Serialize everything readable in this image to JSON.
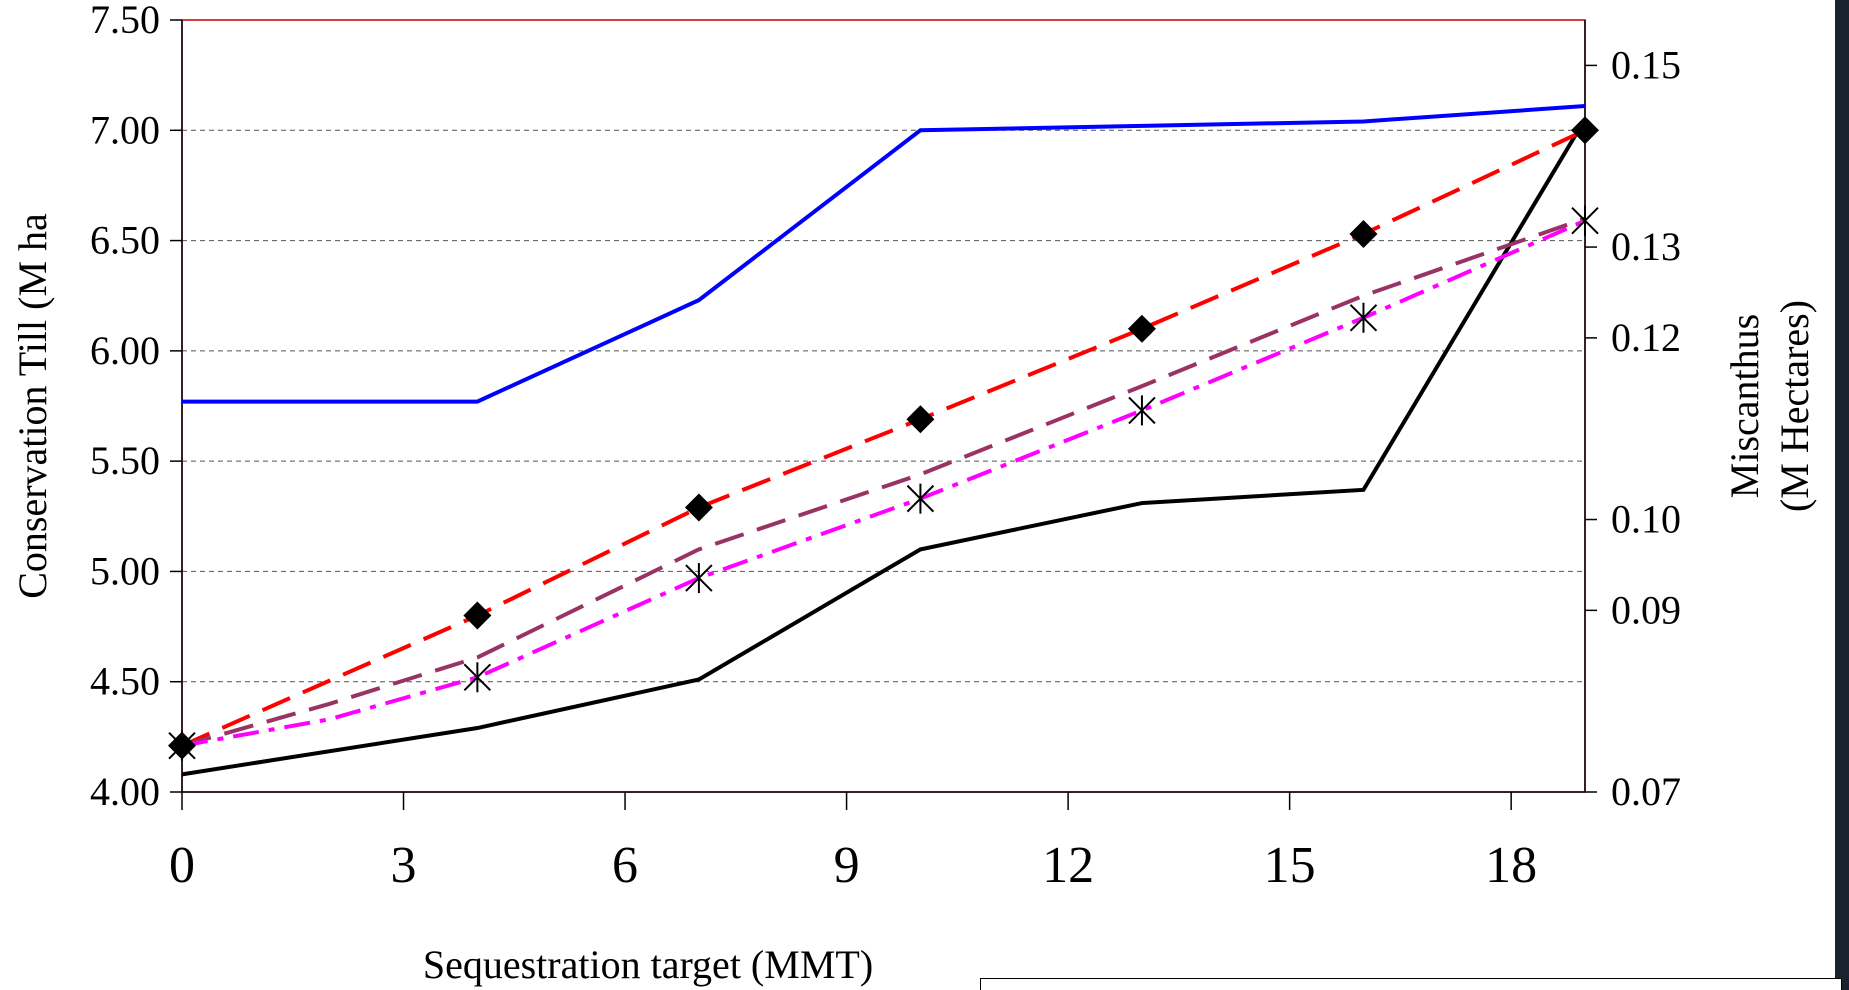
{
  "chart_data": {
    "type": "line",
    "title": "",
    "xlabel": "Sequestration target (MMT)",
    "ylabel": "Conservation Till (M ha",
    "y2label_line1": "Miscanthus",
    "y2label_line2": "(M Hectares)",
    "xlim": [
      0,
      19
    ],
    "ylim": [
      4.0,
      7.5
    ],
    "y2lim": [
      0.07,
      0.155
    ],
    "x_ticks": [
      "0",
      "3",
      "6",
      "9",
      "12",
      "15",
      "18"
    ],
    "y_ticks": [
      "4.00",
      "4.50",
      "5.00",
      "5.50",
      "6.00",
      "6.50",
      "7.00",
      "7.50"
    ],
    "y2_ticks": [
      "0.07",
      "0.09",
      "0.10",
      "0.12",
      "0.13",
      "0.15"
    ],
    "grid": "horizontal-dashed",
    "series": [
      {
        "axis": "left",
        "color": "#0000ff",
        "style": "solid",
        "marker": "none",
        "points": [
          [
            0,
            5.77
          ],
          [
            4,
            5.77
          ],
          [
            7,
            6.23
          ],
          [
            10,
            7.0
          ],
          [
            13,
            7.02
          ],
          [
            16,
            7.04
          ],
          [
            19,
            7.11
          ]
        ]
      },
      {
        "axis": "left",
        "color": "#000000",
        "style": "solid",
        "marker": "none",
        "points": [
          [
            0,
            4.08
          ],
          [
            4,
            4.29
          ],
          [
            7,
            4.51
          ],
          [
            10,
            5.1
          ],
          [
            13,
            5.31
          ],
          [
            16,
            5.37
          ],
          [
            19,
            7.05
          ]
        ]
      },
      {
        "axis": "left",
        "color": "#ff0000",
        "style": "dashed",
        "marker": "diamond",
        "points": [
          [
            0,
            4.21
          ],
          [
            4,
            4.8
          ],
          [
            7,
            5.29
          ],
          [
            10,
            5.69
          ],
          [
            13,
            6.1
          ],
          [
            16,
            6.53
          ],
          [
            19,
            7.0
          ]
        ]
      },
      {
        "axis": "left",
        "color": "#993366",
        "style": "dashed",
        "marker": "none",
        "points": [
          [
            0,
            4.21
          ],
          [
            2,
            4.4
          ],
          [
            4,
            4.61
          ],
          [
            7,
            5.1
          ],
          [
            10,
            5.44
          ],
          [
            13,
            5.84
          ],
          [
            16,
            6.25
          ],
          [
            19,
            6.6
          ]
        ]
      },
      {
        "axis": "left",
        "color": "#ff00ff",
        "style": "dashdot",
        "marker": "asterisk",
        "points": [
          [
            0,
            4.21
          ],
          [
            2,
            4.33
          ],
          [
            4,
            4.52
          ],
          [
            7,
            4.97
          ],
          [
            10,
            5.33
          ],
          [
            13,
            5.73
          ],
          [
            16,
            6.15
          ],
          [
            19,
            6.59
          ]
        ]
      }
    ]
  }
}
